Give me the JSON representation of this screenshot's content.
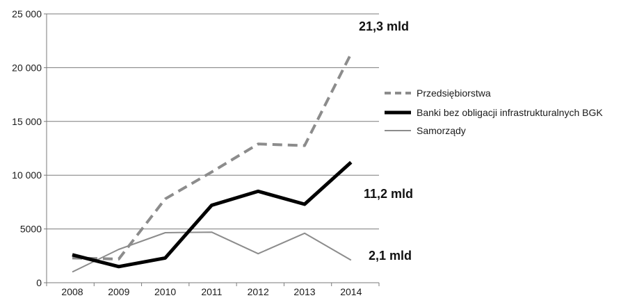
{
  "chart_data": {
    "type": "line",
    "title": "",
    "xlabel": "",
    "ylabel": "",
    "categories": [
      "2008",
      "2009",
      "2010",
      "2011",
      "2012",
      "2013",
      "2014"
    ],
    "ylim": [
      0,
      25000
    ],
    "yticks": [
      0,
      5000,
      10000,
      15000,
      20000,
      25000
    ],
    "ytick_labels": [
      "0",
      "5000",
      "10 000",
      "15 000",
      "20 000",
      "25 000"
    ],
    "grid": true,
    "legend_position": "right",
    "series": [
      {
        "name": "Przedsiębiorstwa",
        "style": "dashed",
        "color": "#8c8c8c",
        "values": [
          2300,
          2200,
          7800,
          10300,
          12900,
          12750,
          21300
        ]
      },
      {
        "name": "Banki bez obligacji infrastrukturalnych BGK",
        "style": "solid-thick",
        "color": "#000000",
        "values": [
          2600,
          1500,
          2300,
          7200,
          8500,
          7300,
          11200
        ]
      },
      {
        "name": "Samorządy",
        "style": "solid-thin",
        "color": "#8c8c8c",
        "values": [
          1000,
          3100,
          4650,
          4700,
          2700,
          4600,
          2100
        ]
      }
    ],
    "annotations": [
      {
        "text": "21,3 mld",
        "series": 0
      },
      {
        "text": "11,2 mld",
        "series": 1
      },
      {
        "text": "2,1 mld",
        "series": 2
      }
    ]
  }
}
